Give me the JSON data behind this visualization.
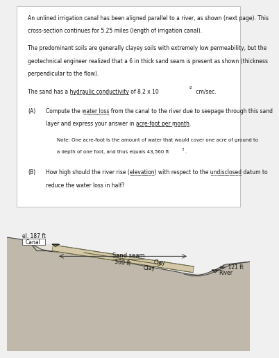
{
  "page_bg": "#f0f0f0",
  "text_bg": "#ffffff",
  "diagram_bg": "#c8c0b4",
  "title_text": "An unlined irrigation canal has been aligned parallel to a river, as shown (next page). This\ncross-section continues for 5.25 miles (length of irrigation canal).",
  "para1_text": "The predominant soils are generally clayey soils with extremely low permeability, but the\ngeotechnical engineer realized that a 6 in thick sand seam is present as shown (thickness\nperpendicular to the flow).",
  "para2_main": "The sand has a hydraulic conductivity of 8.2 x 10",
  "para2_super": "-2",
  "para2_end": " cm/sec.",
  "partA_label": "(A)",
  "partA_line1": "Compute the water loss from the canal to the river due to seepage through this sand",
  "partA_line2": "layer and express your answer in acre-foot per month.",
  "note_line1": "Note: One acre-foot is the amount of water that would cover one acre of ground to",
  "note_line2": "a depth of one foot, and thus equals 43,560 ft",
  "note_super": "3",
  "note_end": ".",
  "partB_label": "(B)",
  "partB_line1": "How high should the river rise (elevation with respect to the undisclosed datum) to",
  "partB_line2": "reduce the water loss in half?",
  "canal_label": "Canal",
  "sand_seam_label": "Sand seam",
  "clay_top_label": "Clay",
  "clay_bot_label": "Clay",
  "river_label": "River",
  "el_canal": "el. 187 ft",
  "el_river": "el. 121 ft",
  "dist_label": "500 ft",
  "ground_color": "#c8c0b4",
  "sand_color": "#d4c8a8",
  "line_color": "#333333",
  "text_color": "#111111"
}
